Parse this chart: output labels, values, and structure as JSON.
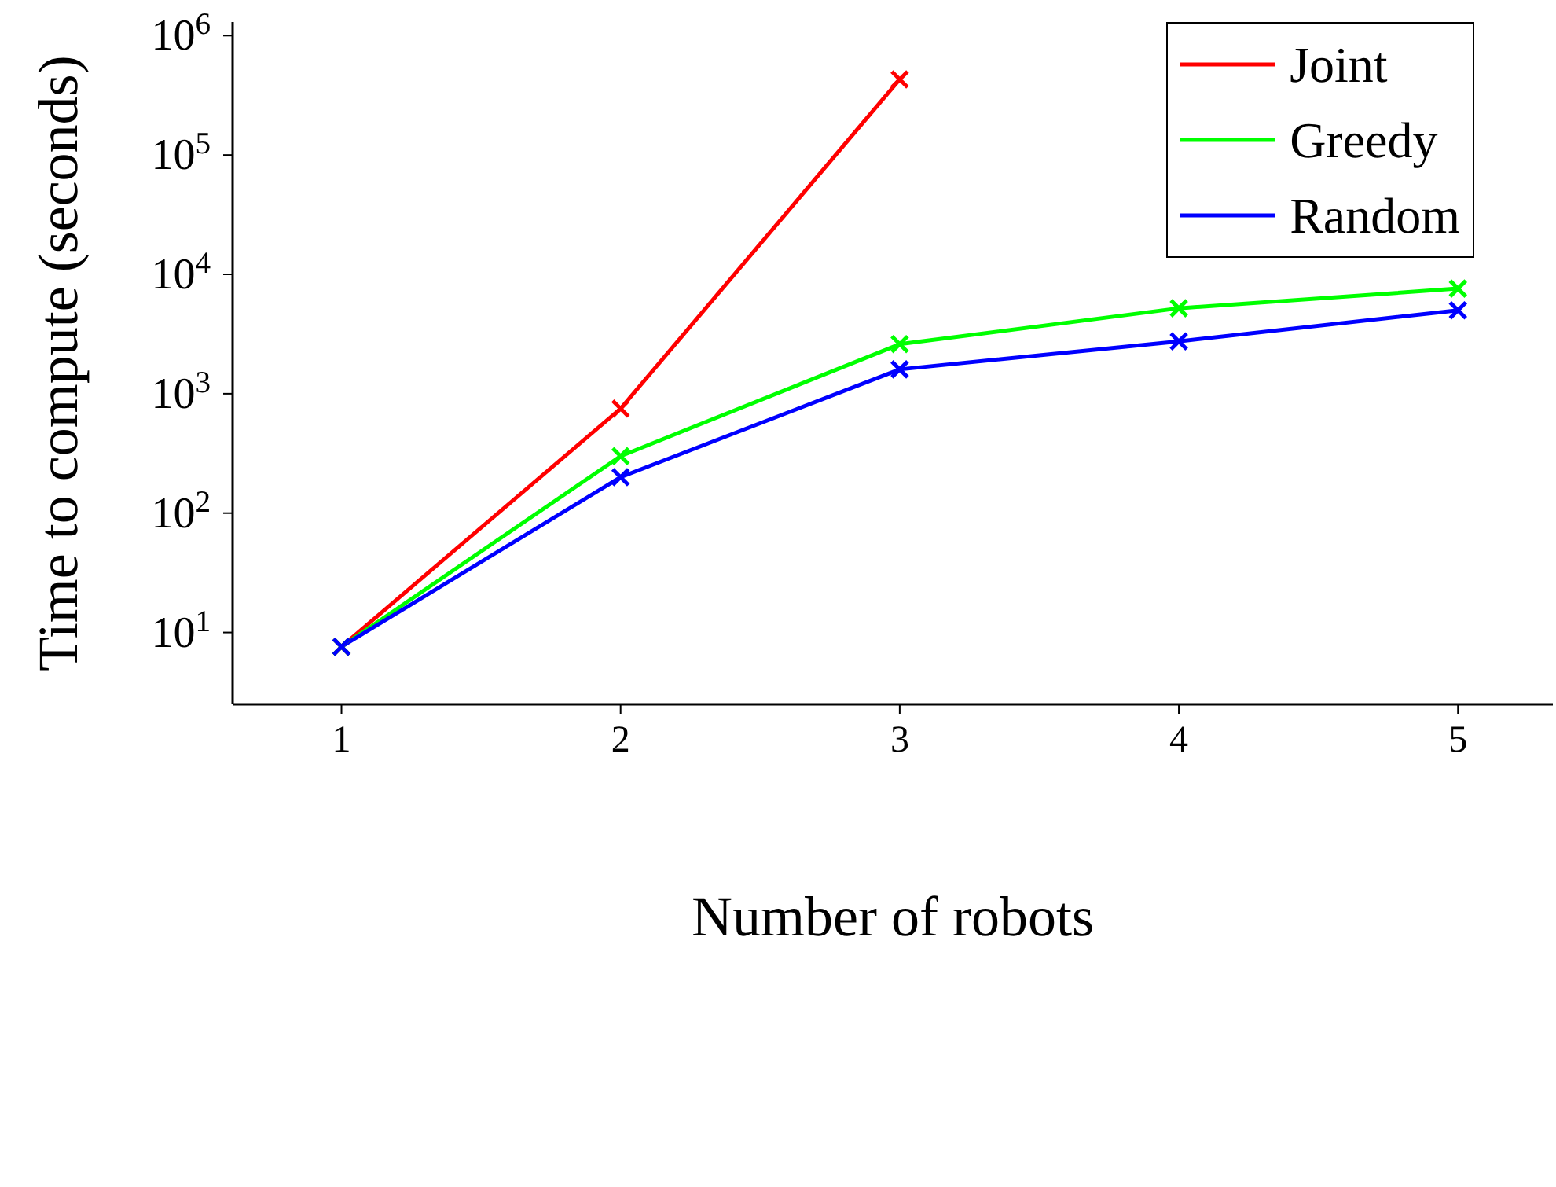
{
  "chart_data": {
    "type": "line",
    "xlabel": "Number of robots",
    "ylabel": "Time to compute (seconds)",
    "x": [
      1,
      2,
      3,
      4,
      5
    ],
    "series": [
      {
        "name": "Joint",
        "color": "#ff0000",
        "values": [
          7.6,
          750,
          430000,
          null,
          null
        ]
      },
      {
        "name": "Greedy",
        "color": "#00ff00",
        "values": [
          7.6,
          300,
          2600,
          5200,
          7600
        ]
      },
      {
        "name": "Random",
        "color": "#0000ff",
        "values": [
          7.6,
          200,
          1600,
          2750,
          5000
        ]
      }
    ],
    "log": "y",
    "xlim": [
      0.61,
      5.34
    ],
    "xticks": [
      1,
      2,
      3,
      4,
      5
    ],
    "ylim": [
      2.5,
      1300000
    ],
    "yticks": [
      {
        "value": 10,
        "label": "10$^{1}$"
      },
      {
        "value": 100,
        "label": "10$^{2}$"
      },
      {
        "value": 1000,
        "label": "10$^{3}$"
      },
      {
        "value": 10000,
        "label": "10$^{4}$"
      },
      {
        "value": 100000,
        "label": "10$^{5}$"
      },
      {
        "value": 1000000,
        "label": "10$^{6}$"
      }
    ],
    "grid": false,
    "legend": "top right",
    "marker": "cross",
    "line_style": "solid"
  }
}
